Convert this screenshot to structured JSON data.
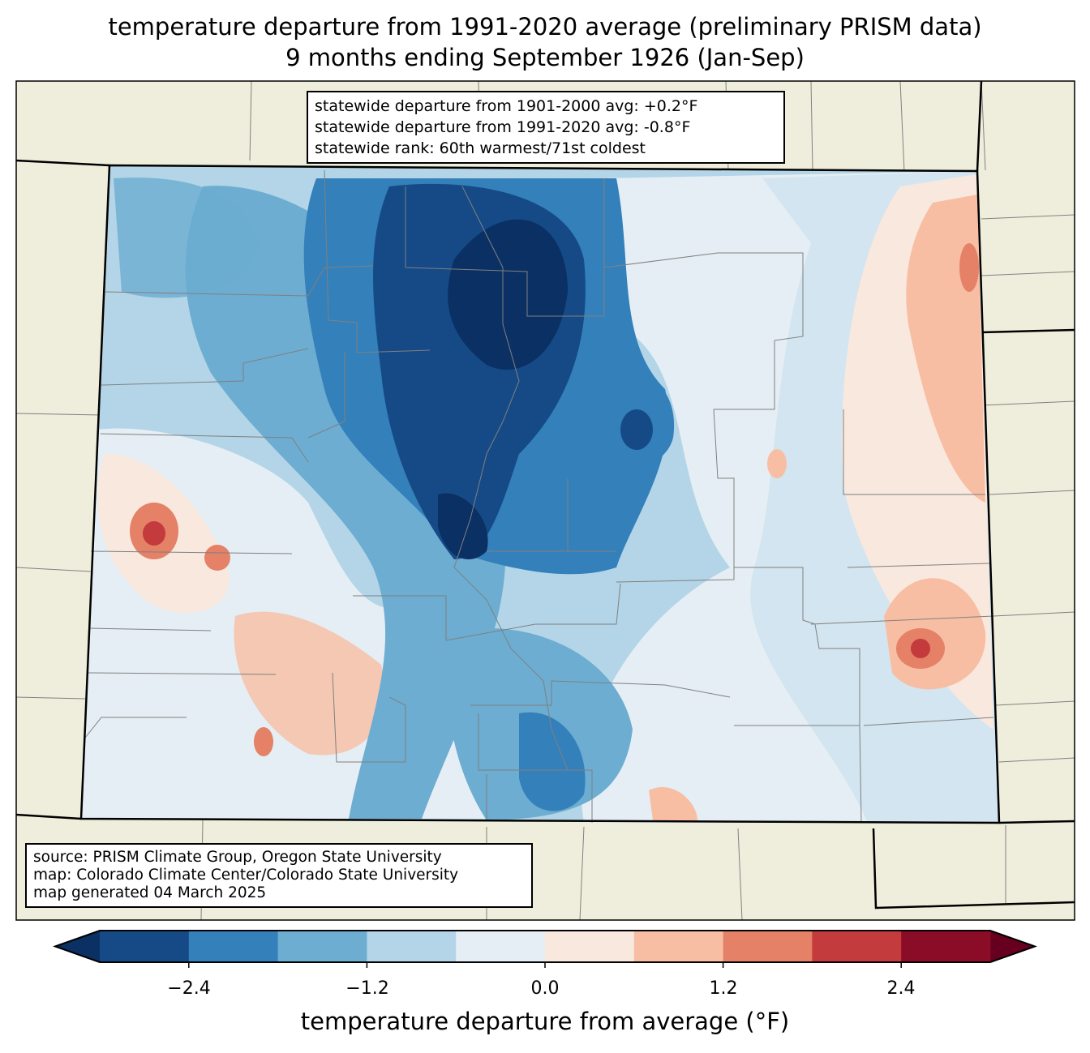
{
  "title": {
    "line1": "temperature departure from 1991-2020 average (preliminary PRISM data)",
    "line2": "9 months ending September 1926 (Jan-Sep)"
  },
  "stats_box": {
    "line1": "statewide departure from 1901-2000 avg: +0.2°F",
    "line2": "statewide departure from 1991-2020 avg: -0.8°F",
    "line3": "statewide rank: 60th warmest/71st coldest"
  },
  "source_box": {
    "line1": "source: PRISM Climate Group, Oregon State University",
    "line2": "map: Colorado Climate Center/Colorado State University",
    "line3": "map generated 04 March 2025"
  },
  "colorbar": {
    "label": "temperature departure from average (°F)",
    "ticks": [
      "−2.4",
      "−1.2",
      "0.0",
      "1.2",
      "2.4"
    ],
    "bin_edges": [
      -3.0,
      -2.4,
      -1.8,
      -1.2,
      -0.6,
      0.0,
      0.6,
      1.2,
      1.8,
      2.4,
      3.0
    ],
    "colors": [
      "#154a86",
      "#3380ba",
      "#6cadd1",
      "#b3d5e7",
      "#e5eef4",
      "#f9e8de",
      "#f8bea3",
      "#e48166",
      "#c33b3c",
      "#8a0c27"
    ],
    "extend_low_color": "#0a3064",
    "extend_high_color": "#67001f"
  },
  "colors": {
    "land": "#efeedc",
    "county_lines": "#808080"
  }
}
